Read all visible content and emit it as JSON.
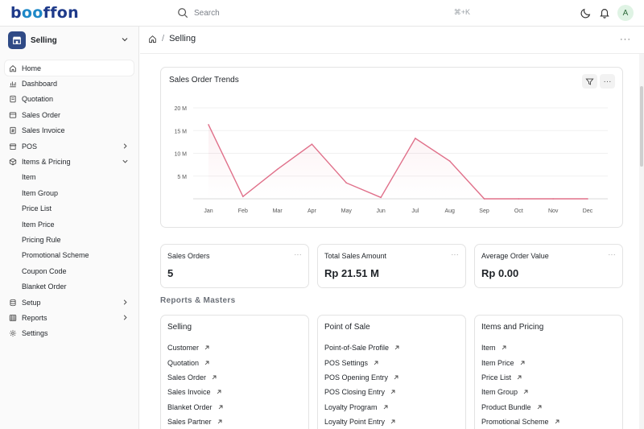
{
  "brand": {
    "logo_text_pre": "b",
    "logo_text_mid": "oo",
    "logo_text_post": "ffon"
  },
  "topbar": {
    "search_placeholder": "Search",
    "search_shortcut": "⌘+K",
    "avatar_initial": "A"
  },
  "sidebar": {
    "workspace": "Selling",
    "items": [
      {
        "label": "Home",
        "icon": "home-icon",
        "active": true
      },
      {
        "label": "Dashboard",
        "icon": "bar-chart-icon"
      },
      {
        "label": "Quotation",
        "icon": "document-icon"
      },
      {
        "label": "Sales Order",
        "icon": "sales-order-icon"
      },
      {
        "label": "Sales Invoice",
        "icon": "invoice-icon"
      },
      {
        "label": "POS",
        "icon": "store-icon",
        "chevron": "right"
      },
      {
        "label": "Items & Pricing",
        "icon": "box-icon",
        "chevron": "down"
      },
      {
        "label": "Item",
        "sub": true
      },
      {
        "label": "Item Group",
        "sub": true
      },
      {
        "label": "Price List",
        "sub": true
      },
      {
        "label": "Item Price",
        "sub": true
      },
      {
        "label": "Pricing Rule",
        "sub": true
      },
      {
        "label": "Promotional Scheme",
        "sub": true
      },
      {
        "label": "Coupon Code",
        "sub": true
      },
      {
        "label": "Blanket Order",
        "sub": true
      },
      {
        "label": "Setup",
        "icon": "database-icon",
        "chevron": "right"
      },
      {
        "label": "Reports",
        "icon": "table-icon",
        "chevron": "right"
      },
      {
        "label": "Settings",
        "icon": "gear-icon"
      }
    ]
  },
  "breadcrumb": {
    "current": "Selling"
  },
  "chart_data": {
    "type": "line",
    "title": "Sales Order Trends",
    "categories": [
      "Jan",
      "Feb",
      "Mar",
      "Apr",
      "May",
      "Jun",
      "Jul",
      "Aug",
      "Sep",
      "Oct",
      "Nov",
      "Dec"
    ],
    "y_ticks": [
      "20 M",
      "15 M",
      "10 M",
      "5 M"
    ],
    "ylim": [
      0,
      20000000
    ],
    "series": [
      {
        "values": [
          16300000,
          500000,
          6500000,
          12000000,
          3500000,
          300000,
          13300000,
          8300000,
          0,
          0,
          0,
          0
        ]
      }
    ],
    "color": "#e0708a",
    "grid": true
  },
  "stats": [
    {
      "label": "Sales Orders",
      "value": "5"
    },
    {
      "label": "Total Sales Amount",
      "value": "Rp 21.51 M"
    },
    {
      "label": "Average Order Value",
      "value": "Rp 0.00"
    }
  ],
  "section_title": "Reports & Masters",
  "reports": [
    {
      "title": "Selling",
      "links": [
        "Customer",
        "Quotation",
        "Sales Order",
        "Sales Invoice",
        "Blanket Order",
        "Sales Partner"
      ]
    },
    {
      "title": "Point of Sale",
      "links": [
        "Point-of-Sale Profile",
        "POS Settings",
        "POS Opening Entry",
        "POS Closing Entry",
        "Loyalty Program",
        "Loyalty Point Entry"
      ]
    },
    {
      "title": "Items and Pricing",
      "links": [
        "Item",
        "Item Price",
        "Price List",
        "Item Group",
        "Product Bundle",
        "Promotional Scheme"
      ]
    }
  ]
}
